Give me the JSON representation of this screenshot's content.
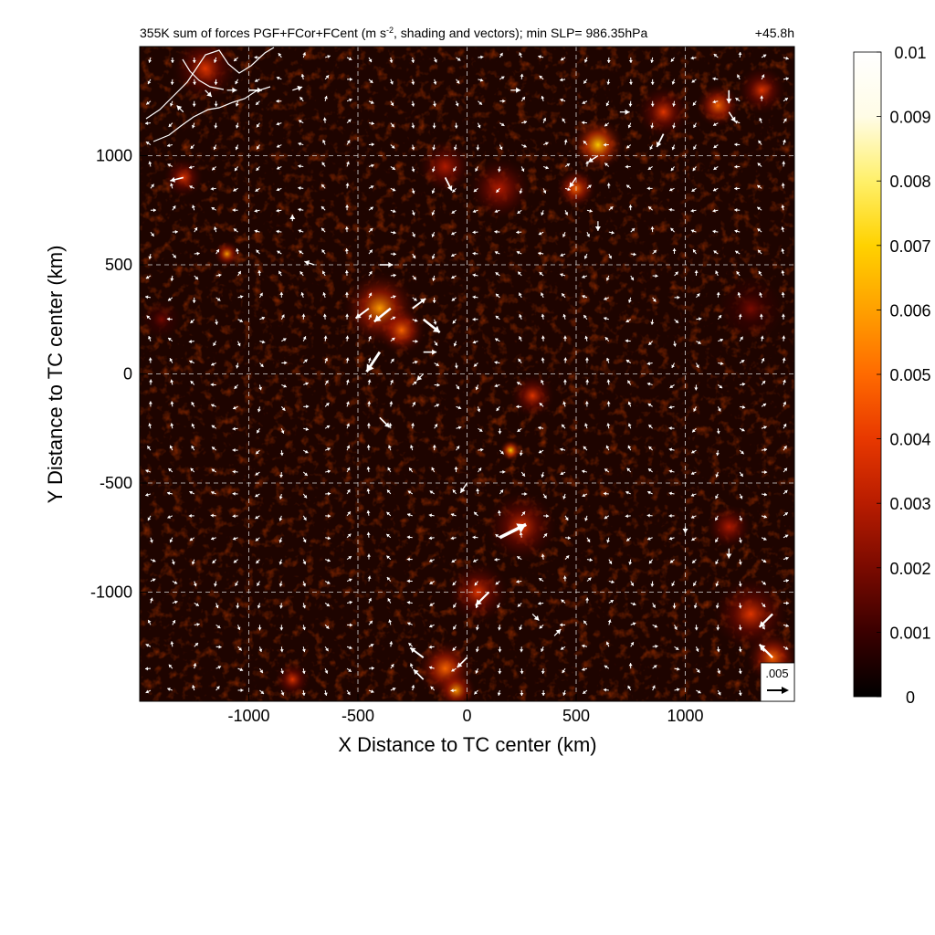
{
  "chart_data": {
    "type": "heatmap",
    "title": "355K sum of forces PGF+FCor+FCent (m s",
    "title_sup": "-2",
    "title_rest": ", shading and vectors); min SLP= 986.35hPa",
    "time_label": "+45.8h",
    "xlabel": "X Distance to TC center (km)",
    "ylabel": "Y Distance to TC center (km)",
    "xlim": [
      -1500,
      1500
    ],
    "ylim": [
      -1500,
      1500
    ],
    "x_ticks": [
      -1000,
      -500,
      0,
      500,
      1000
    ],
    "y_ticks": [
      -1000,
      -500,
      0,
      500,
      1000
    ],
    "grid": true,
    "colorbar": {
      "min": 0,
      "max": 0.01,
      "ticks": [
        "0.01",
        "0.009",
        "0.008",
        "0.007",
        "0.006",
        "0.005",
        "0.004",
        "0.003",
        "0.002",
        "0.001",
        "0"
      ],
      "colormap": [
        "#000000",
        "#3a0000",
        "#7a0a00",
        "#b81c00",
        "#e83800",
        "#ff6a00",
        "#ffa000",
        "#ffd200",
        "#fff06a",
        "#fffce6",
        "#ffffff"
      ]
    },
    "reference_vector": {
      "label": ".005",
      "value": 0.005
    },
    "min_slp_hpa": 986.35,
    "hotspots": [
      {
        "x": -400,
        "y": 300,
        "r": 170,
        "v": 0.006
      },
      {
        "x": -300,
        "y": 200,
        "r": 110,
        "v": 0.005
      },
      {
        "x": 600,
        "y": 1050,
        "r": 120,
        "v": 0.007
      },
      {
        "x": 500,
        "y": 850,
        "r": 90,
        "v": 0.005
      },
      {
        "x": 900,
        "y": 1200,
        "r": 120,
        "v": 0.004
      },
      {
        "x": 1150,
        "y": 1230,
        "r": 100,
        "v": 0.005
      },
      {
        "x": 1350,
        "y": 1300,
        "r": 110,
        "v": 0.004
      },
      {
        "x": 150,
        "y": 850,
        "r": 140,
        "v": 0.003
      },
      {
        "x": -100,
        "y": 950,
        "r": 120,
        "v": 0.003
      },
      {
        "x": -1200,
        "y": 1400,
        "r": 150,
        "v": 0.004
      },
      {
        "x": -1300,
        "y": 900,
        "r": 90,
        "v": 0.004
      },
      {
        "x": -1100,
        "y": 550,
        "r": 60,
        "v": 0.006
      },
      {
        "x": 300,
        "y": -100,
        "r": 100,
        "v": 0.004
      },
      {
        "x": 200,
        "y": -350,
        "r": 50,
        "v": 0.007
      },
      {
        "x": 250,
        "y": -700,
        "r": 160,
        "v": 0.004
      },
      {
        "x": 50,
        "y": -1000,
        "r": 140,
        "v": 0.004
      },
      {
        "x": -100,
        "y": -1350,
        "r": 130,
        "v": 0.005
      },
      {
        "x": -50,
        "y": -1450,
        "r": 90,
        "v": 0.006
      },
      {
        "x": 1300,
        "y": -1100,
        "r": 170,
        "v": 0.004
      },
      {
        "x": 1400,
        "y": -1300,
        "r": 120,
        "v": 0.005
      },
      {
        "x": -800,
        "y": -1400,
        "r": 80,
        "v": 0.004
      },
      {
        "x": 1200,
        "y": -700,
        "r": 100,
        "v": 0.003
      },
      {
        "x": -1400,
        "y": 250,
        "r": 90,
        "v": 0.002
      },
      {
        "x": 1300,
        "y": 300,
        "r": 150,
        "v": 0.002
      }
    ],
    "vectors": [
      {
        "x": -1300,
        "y": 900,
        "u": -0.004,
        "v": -0.001
      },
      {
        "x": -1100,
        "y": 1300,
        "u": 0.003,
        "v": 0.0
      },
      {
        "x": -1000,
        "y": 1300,
        "u": 0.004,
        "v": 0.0
      },
      {
        "x": -800,
        "y": 1300,
        "u": 0.003,
        "v": 0.001
      },
      {
        "x": -1200,
        "y": 1300,
        "u": 0.002,
        "v": -0.002
      },
      {
        "x": -400,
        "y": 500,
        "u": 0.004,
        "v": 0.0
      },
      {
        "x": -700,
        "y": 500,
        "u": -0.003,
        "v": 0.001
      },
      {
        "x": -450,
        "y": 300,
        "u": -0.004,
        "v": -0.003
      },
      {
        "x": -350,
        "y": 300,
        "u": -0.005,
        "v": -0.004
      },
      {
        "x": -250,
        "y": 300,
        "u": 0.004,
        "v": 0.003
      },
      {
        "x": -200,
        "y": 250,
        "u": 0.005,
        "v": -0.004
      },
      {
        "x": -400,
        "y": 100,
        "u": -0.004,
        "v": -0.006
      },
      {
        "x": -200,
        "y": 100,
        "u": 0.004,
        "v": 0.0
      },
      {
        "x": -400,
        "y": -200,
        "u": 0.003,
        "v": -0.003
      },
      {
        "x": -200,
        "y": 0,
        "u": -0.002,
        "v": -0.002
      },
      {
        "x": 600,
        "y": 1000,
        "u": -0.003,
        "v": -0.002
      },
      {
        "x": 900,
        "y": 1100,
        "u": -0.002,
        "v": -0.004
      },
      {
        "x": 1200,
        "y": 1300,
        "u": 0.0,
        "v": -0.004
      },
      {
        "x": 1200,
        "y": 1200,
        "u": 0.002,
        "v": -0.003
      },
      {
        "x": -100,
        "y": 900,
        "u": 0.002,
        "v": -0.004
      },
      {
        "x": 150,
        "y": -750,
        "u": 0.008,
        "v": 0.004
      },
      {
        "x": 100,
        "y": -1000,
        "u": -0.004,
        "v": -0.004
      },
      {
        "x": 0,
        "y": -500,
        "u": -0.002,
        "v": -0.003
      },
      {
        "x": -200,
        "y": -1300,
        "u": -0.004,
        "v": 0.003
      },
      {
        "x": -200,
        "y": -1400,
        "u": -0.003,
        "v": 0.003
      },
      {
        "x": 0,
        "y": -1300,
        "u": -0.003,
        "v": -0.003
      },
      {
        "x": 1400,
        "y": -1100,
        "u": -0.004,
        "v": -0.004
      },
      {
        "x": 1400,
        "y": -1300,
        "u": -0.004,
        "v": 0.004
      },
      {
        "x": -1300,
        "y": 1200,
        "u": -0.002,
        "v": 0.002
      },
      {
        "x": 200,
        "y": 1300,
        "u": 0.003,
        "v": 0.0
      },
      {
        "x": 700,
        "y": 1200,
        "u": 0.003,
        "v": 0.0
      },
      {
        "x": 600,
        "y": 700,
        "u": 0.0,
        "v": -0.003
      },
      {
        "x": 500,
        "y": 900,
        "u": -0.002,
        "v": -0.003
      },
      {
        "x": -800,
        "y": 700,
        "u": 0.0,
        "v": 0.002
      },
      {
        "x": 1000,
        "y": -700,
        "u": 0.0,
        "v": -0.002
      },
      {
        "x": 1200,
        "y": -800,
        "u": 0.0,
        "v": -0.003
      },
      {
        "x": 300,
        "y": -1100,
        "u": 0.002,
        "v": -0.002
      },
      {
        "x": 400,
        "y": -1200,
        "u": 0.002,
        "v": 0.002
      }
    ]
  }
}
